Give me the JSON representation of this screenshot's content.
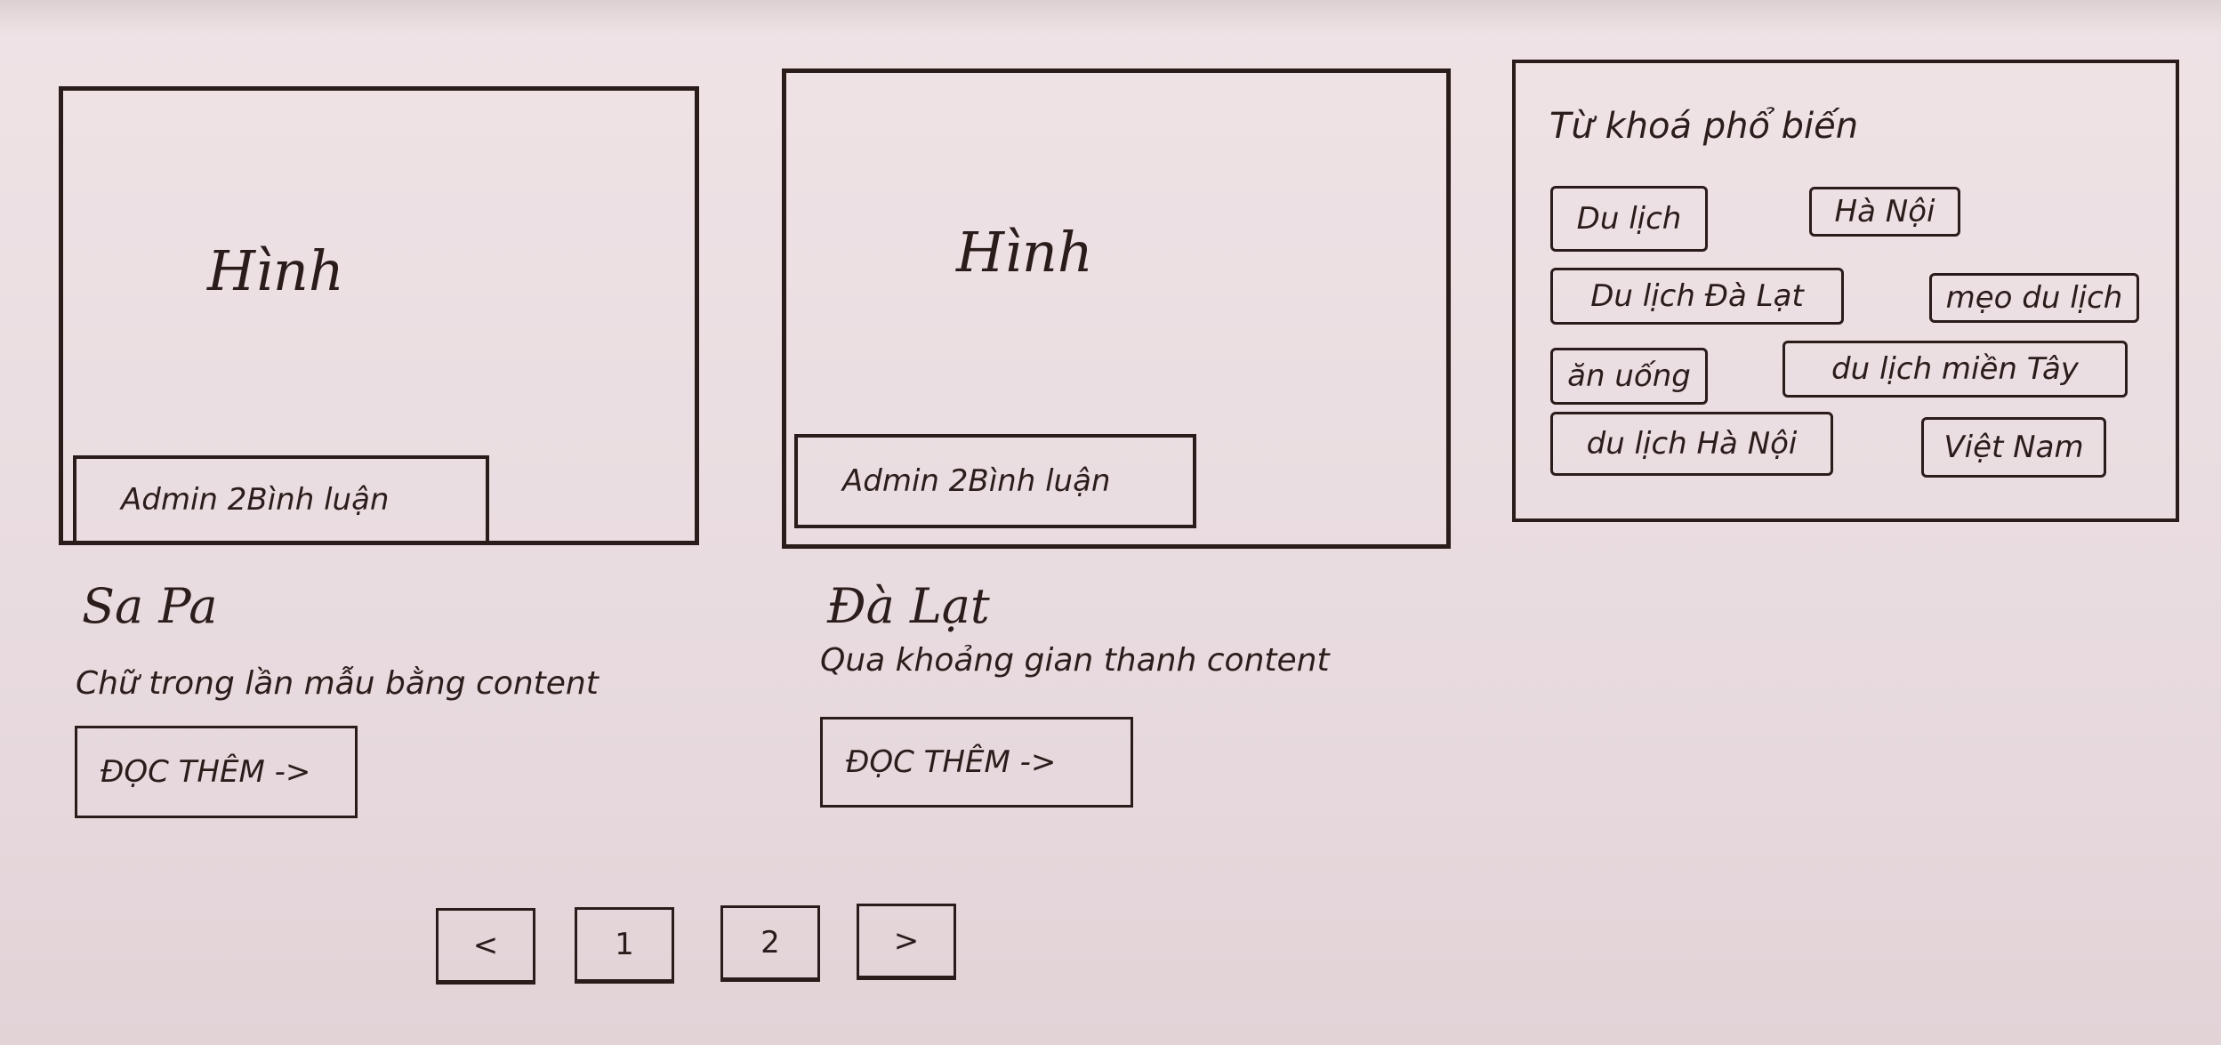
{
  "posts": [
    {
      "image_label": "Hình",
      "meta": "Admin 2Bình luận",
      "title": "Sa Pa",
      "excerpt": "Chữ trong lần mẫu bằng content",
      "read_more": "ĐỌC THÊM ->"
    },
    {
      "image_label": "Hình",
      "meta": "Admin 2Bình luận",
      "title": "Đà Lạt",
      "excerpt": "Qua khoảng gian thanh content",
      "read_more": "ĐỌC THÊM ->"
    }
  ],
  "sidebar": {
    "title": "Từ khoá phổ biến",
    "tags": [
      "Du lịch",
      "Hà Nội",
      "Du lịch Đà Lạt",
      "mẹo du lịch",
      "ăn uống",
      "du lịch miền Tây",
      "du lịch Hà Nội",
      "Việt Nam"
    ]
  },
  "pagination": {
    "prev": "<",
    "pages": [
      "1",
      "2"
    ],
    "next": ">"
  }
}
